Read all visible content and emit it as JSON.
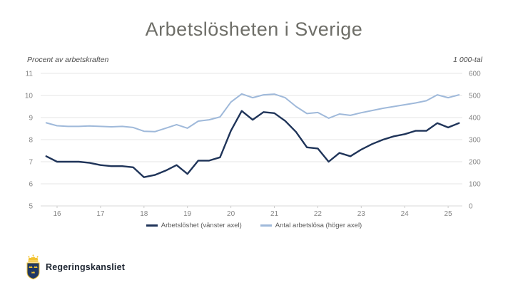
{
  "title": "Arbetslösheten i Sverige",
  "left_axis_caption": "Procent av arbetskraften",
  "right_axis_caption": "1 000-tal",
  "legend": [
    {
      "label": "Arbetslöshet (vänster axel)",
      "color": "#1f3459"
    },
    {
      "label": "Antal arbetslösa (höger axel)",
      "color": "#9fb9da"
    }
  ],
  "footer": {
    "logo_text": "Regeringskansliet"
  },
  "colors": {
    "title": "#6e6e68",
    "unemployment_line": "#1f3459",
    "unemployed_count_line": "#9fb9da",
    "tick_text": "#858585",
    "logo_shield_blue": "#1f3864",
    "logo_crown_gold": "#f2c230"
  },
  "chart_data": {
    "type": "line",
    "title": "Arbetslösheten i Sverige",
    "x_start": 15.75,
    "x_step": 0.25,
    "x_tick_labels": [
      "16",
      "17",
      "18",
      "19",
      "20",
      "21",
      "22",
      "23",
      "24",
      "25"
    ],
    "left_axis": {
      "label": "Procent av arbetskraften",
      "ticks": [
        5,
        6,
        7,
        8,
        9,
        10,
        11
      ],
      "range": [
        5,
        11
      ]
    },
    "right_axis": {
      "label": "1 000-tal",
      "ticks": [
        0,
        100,
        200,
        300,
        400,
        500,
        600
      ],
      "range": [
        0,
        600
      ]
    },
    "grid": true,
    "legend_position": "bottom",
    "series": [
      {
        "name": "Arbetslöshet (vänster axel)",
        "axis": "left",
        "color": "#1f3459",
        "values": [
          7.25,
          7.0,
          7.0,
          7.0,
          6.95,
          6.85,
          6.8,
          6.8,
          6.75,
          6.3,
          6.4,
          6.6,
          6.85,
          6.45,
          7.05,
          7.05,
          7.2,
          8.4,
          9.3,
          8.9,
          9.25,
          9.2,
          8.85,
          8.35,
          7.65,
          7.6,
          7.0,
          7.4,
          7.25,
          7.55,
          7.8,
          8.0,
          8.15,
          8.25,
          8.4,
          8.4,
          8.75,
          8.55,
          8.75
        ]
      },
      {
        "name": "Antal arbetslösa (höger axel)",
        "axis": "right",
        "color": "#9fb9da",
        "values": [
          376,
          363,
          360,
          360,
          362,
          360,
          358,
          360,
          355,
          338,
          336,
          352,
          368,
          352,
          384,
          390,
          403,
          470,
          507,
          490,
          503,
          506,
          490,
          450,
          418,
          423,
          397,
          416,
          410,
          422,
          432,
          442,
          450,
          458,
          466,
          476,
          503,
          490,
          503
        ]
      }
    ]
  }
}
